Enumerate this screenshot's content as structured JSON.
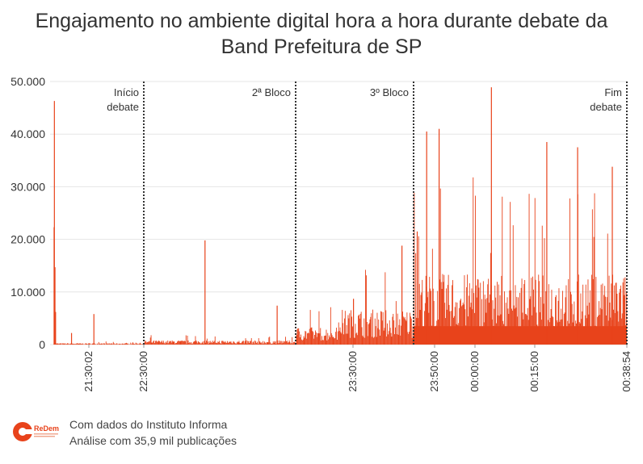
{
  "title_line1": "Engajamento no ambiente digital hora a hora durante debate da",
  "title_line2": "Band Prefeitura de SP",
  "footer": {
    "line1": "Com dados do Instituto Informa",
    "line2": "Análise com 35,9 mil publicações"
  },
  "logo_text": "ReDem",
  "colors": {
    "bars": "#e8431b",
    "grid": "#e6e6e6",
    "marker": "#333333"
  },
  "chart_data": {
    "type": "bar",
    "title": "Engajamento no ambiente digital hora a hora durante debate da Band Prefeitura de SP",
    "xlabel": "",
    "ylabel": "",
    "ylim": [
      0,
      50000
    ],
    "yticks": [
      "50.000",
      "40.000",
      "30.000",
      "20.000",
      "10.000",
      "0"
    ],
    "ytick_values": [
      50000,
      40000,
      30000,
      20000,
      10000,
      0
    ],
    "x_range": [
      "21:10:00",
      "00:38:54"
    ],
    "xticks": [
      "21:30:02",
      "22:30:00",
      "23:30:00",
      "23:50:00",
      "00:00:00",
      "00:15:00",
      "00:38:54"
    ],
    "markers": [
      {
        "time": "22:30:00",
        "label": [
          "Início",
          "debate"
        ]
      },
      {
        "time": "23:10:00",
        "label": [
          "2ª Bloco"
        ]
      },
      {
        "time": "23:40:00",
        "label": [
          "3º Bloco"
        ]
      },
      {
        "time": "00:38:54",
        "label": [
          "Fim",
          "debate"
        ]
      }
    ],
    "grid": true,
    "peaks": [
      {
        "time": "21:10:20",
        "value": 46300
      },
      {
        "time": "21:10:10",
        "value": 22300
      },
      {
        "time": "21:10:40",
        "value": 14700
      },
      {
        "time": "21:11:00",
        "value": 6200
      },
      {
        "time": "21:20:00",
        "value": 2200
      },
      {
        "time": "21:35:00",
        "value": 5800
      },
      {
        "time": "22:46:00",
        "value": 19800
      },
      {
        "time": "23:05:00",
        "value": 7400
      },
      {
        "time": "23:30:00",
        "value": 8700
      },
      {
        "time": "23:38:00",
        "value": 18800
      },
      {
        "time": "23:41:30",
        "value": 21500
      },
      {
        "time": "23:46:00",
        "value": 40500
      },
      {
        "time": "23:51:00",
        "value": 41000
      },
      {
        "time": "00:04:00",
        "value": 48900
      },
      {
        "time": "00:18:00",
        "value": 38500
      },
      {
        "time": "00:26:00",
        "value": 37500
      },
      {
        "time": "00:35:00",
        "value": 33800
      }
    ],
    "baseline_by_period": [
      {
        "from": "21:10:00",
        "to": "22:30:00",
        "typical": 200
      },
      {
        "from": "22:30:00",
        "to": "23:10:00",
        "typical": 600
      },
      {
        "from": "23:10:00",
        "to": "23:25:00",
        "typical": 2500
      },
      {
        "from": "23:25:00",
        "to": "23:40:00",
        "typical": 5000
      },
      {
        "from": "23:40:00",
        "to": "00:38:54",
        "typical": 10000
      }
    ]
  }
}
